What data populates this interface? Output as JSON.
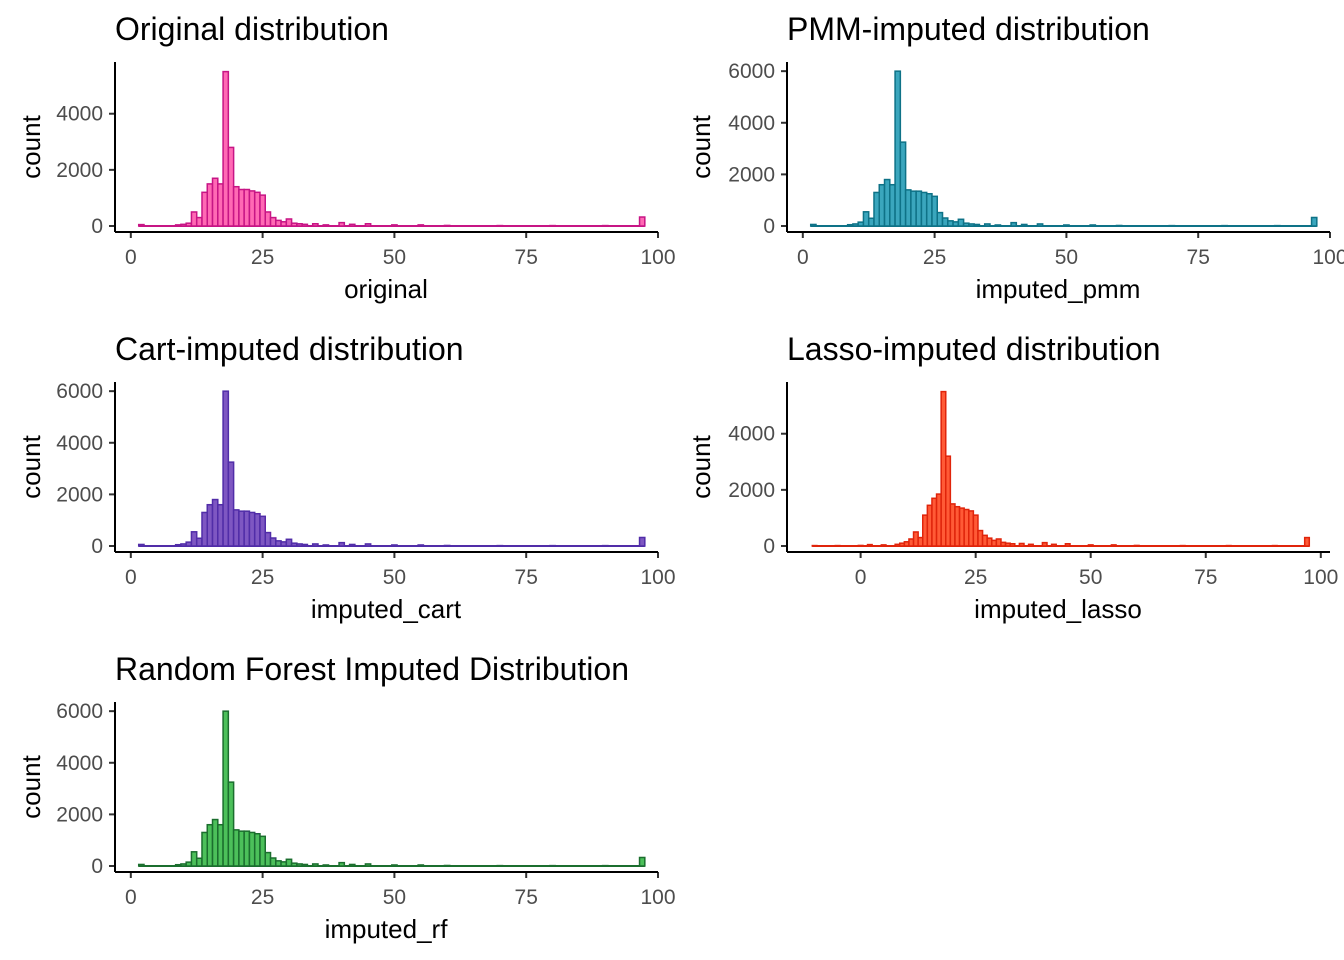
{
  "colors": {
    "original": {
      "fill": "#ff69b4",
      "stroke": "#c71585"
    },
    "pmm": {
      "fill": "#3aa6bd",
      "stroke": "#0e7287"
    },
    "cart": {
      "fill": "#7e57c2",
      "stroke": "#512da8"
    },
    "lasso": {
      "fill": "#ff5a36",
      "stroke": "#e0240b"
    },
    "rf": {
      "fill": "#4cc05a",
      "stroke": "#1b6e2e"
    }
  },
  "chart_data": [
    {
      "type": "bar",
      "id": "original",
      "title": "Original distribution",
      "xlabel": "original",
      "ylabel": "count",
      "xlim": [
        -3,
        100
      ],
      "ylim": [
        0,
        5700
      ],
      "xticks": [
        0,
        25,
        50,
        75,
        100
      ],
      "yticks": [
        0,
        2000,
        4000
      ],
      "grid": false,
      "bins": [
        {
          "x": 2,
          "count": 50
        },
        {
          "x": 9,
          "count": 40
        },
        {
          "x": 10,
          "count": 60
        },
        {
          "x": 11,
          "count": 100
        },
        {
          "x": 12,
          "count": 500
        },
        {
          "x": 13,
          "count": 300
        },
        {
          "x": 14,
          "count": 1200
        },
        {
          "x": 15,
          "count": 1500
        },
        {
          "x": 16,
          "count": 1700
        },
        {
          "x": 17,
          "count": 1500
        },
        {
          "x": 18,
          "count": 5500
        },
        {
          "x": 19,
          "count": 2800
        },
        {
          "x": 20,
          "count": 1400
        },
        {
          "x": 21,
          "count": 1300
        },
        {
          "x": 22,
          "count": 1300
        },
        {
          "x": 23,
          "count": 1250
        },
        {
          "x": 24,
          "count": 1200
        },
        {
          "x": 25,
          "count": 1100
        },
        {
          "x": 26,
          "count": 500
        },
        {
          "x": 27,
          "count": 300
        },
        {
          "x": 28,
          "count": 200
        },
        {
          "x": 29,
          "count": 150
        },
        {
          "x": 30,
          "count": 250
        },
        {
          "x": 31,
          "count": 100
        },
        {
          "x": 32,
          "count": 80
        },
        {
          "x": 33,
          "count": 60
        },
        {
          "x": 35,
          "count": 80
        },
        {
          "x": 37,
          "count": 40
        },
        {
          "x": 40,
          "count": 120
        },
        {
          "x": 42,
          "count": 60
        },
        {
          "x": 45,
          "count": 80
        },
        {
          "x": 50,
          "count": 40
        },
        {
          "x": 55,
          "count": 40
        },
        {
          "x": 60,
          "count": 20
        },
        {
          "x": 70,
          "count": 15
        },
        {
          "x": 80,
          "count": 15
        },
        {
          "x": 90,
          "count": 15
        },
        {
          "x": 97,
          "count": 320
        }
      ]
    },
    {
      "type": "bar",
      "id": "pmm",
      "title": "PMM-imputed distribution",
      "xlabel": "imputed_pmm",
      "ylabel": "count",
      "xlim": [
        -3,
        100
      ],
      "ylim": [
        0,
        6200
      ],
      "xticks": [
        0,
        25,
        50,
        75,
        100
      ],
      "yticks": [
        0,
        2000,
        4000,
        6000
      ],
      "grid": false,
      "bins": [
        {
          "x": 2,
          "count": 60
        },
        {
          "x": 9,
          "count": 50
        },
        {
          "x": 10,
          "count": 80
        },
        {
          "x": 11,
          "count": 150
        },
        {
          "x": 12,
          "count": 550
        },
        {
          "x": 13,
          "count": 300
        },
        {
          "x": 14,
          "count": 1300
        },
        {
          "x": 15,
          "count": 1600
        },
        {
          "x": 16,
          "count": 1800
        },
        {
          "x": 17,
          "count": 1600
        },
        {
          "x": 18,
          "count": 6000
        },
        {
          "x": 19,
          "count": 3250
        },
        {
          "x": 20,
          "count": 1400
        },
        {
          "x": 21,
          "count": 1350
        },
        {
          "x": 22,
          "count": 1350
        },
        {
          "x": 23,
          "count": 1300
        },
        {
          "x": 24,
          "count": 1250
        },
        {
          "x": 25,
          "count": 1150
        },
        {
          "x": 26,
          "count": 520
        },
        {
          "x": 27,
          "count": 310
        },
        {
          "x": 28,
          "count": 200
        },
        {
          "x": 29,
          "count": 160
        },
        {
          "x": 30,
          "count": 260
        },
        {
          "x": 31,
          "count": 110
        },
        {
          "x": 32,
          "count": 80
        },
        {
          "x": 33,
          "count": 60
        },
        {
          "x": 35,
          "count": 80
        },
        {
          "x": 37,
          "count": 40
        },
        {
          "x": 40,
          "count": 130
        },
        {
          "x": 42,
          "count": 60
        },
        {
          "x": 45,
          "count": 80
        },
        {
          "x": 50,
          "count": 40
        },
        {
          "x": 55,
          "count": 40
        },
        {
          "x": 60,
          "count": 20
        },
        {
          "x": 70,
          "count": 15
        },
        {
          "x": 80,
          "count": 15
        },
        {
          "x": 90,
          "count": 15
        },
        {
          "x": 97,
          "count": 330
        }
      ]
    },
    {
      "type": "bar",
      "id": "cart",
      "title": "Cart-imputed distribution",
      "xlabel": "imputed_cart",
      "ylabel": "count",
      "xlim": [
        -3,
        100
      ],
      "ylim": [
        0,
        6200
      ],
      "xticks": [
        0,
        25,
        50,
        75,
        100
      ],
      "yticks": [
        0,
        2000,
        4000,
        6000
      ],
      "grid": false,
      "bins": [
        {
          "x": 2,
          "count": 60
        },
        {
          "x": 9,
          "count": 50
        },
        {
          "x": 10,
          "count": 80
        },
        {
          "x": 11,
          "count": 150
        },
        {
          "x": 12,
          "count": 550
        },
        {
          "x": 13,
          "count": 300
        },
        {
          "x": 14,
          "count": 1300
        },
        {
          "x": 15,
          "count": 1600
        },
        {
          "x": 16,
          "count": 1800
        },
        {
          "x": 17,
          "count": 1600
        },
        {
          "x": 18,
          "count": 6000
        },
        {
          "x": 19,
          "count": 3250
        },
        {
          "x": 20,
          "count": 1400
        },
        {
          "x": 21,
          "count": 1350
        },
        {
          "x": 22,
          "count": 1350
        },
        {
          "x": 23,
          "count": 1300
        },
        {
          "x": 24,
          "count": 1250
        },
        {
          "x": 25,
          "count": 1150
        },
        {
          "x": 26,
          "count": 520
        },
        {
          "x": 27,
          "count": 310
        },
        {
          "x": 28,
          "count": 200
        },
        {
          "x": 29,
          "count": 160
        },
        {
          "x": 30,
          "count": 260
        },
        {
          "x": 31,
          "count": 110
        },
        {
          "x": 32,
          "count": 80
        },
        {
          "x": 33,
          "count": 60
        },
        {
          "x": 35,
          "count": 80
        },
        {
          "x": 37,
          "count": 40
        },
        {
          "x": 40,
          "count": 130
        },
        {
          "x": 42,
          "count": 60
        },
        {
          "x": 45,
          "count": 80
        },
        {
          "x": 50,
          "count": 40
        },
        {
          "x": 55,
          "count": 40
        },
        {
          "x": 60,
          "count": 20
        },
        {
          "x": 70,
          "count": 15
        },
        {
          "x": 80,
          "count": 15
        },
        {
          "x": 90,
          "count": 15
        },
        {
          "x": 97,
          "count": 330
        }
      ]
    },
    {
      "type": "bar",
      "id": "lasso",
      "title": "Lasso-imputed distribution",
      "xlabel": "imputed_lasso",
      "ylabel": "count",
      "xlim": [
        -16,
        102
      ],
      "ylim": [
        0,
        5700
      ],
      "xticks": [
        0,
        25,
        50,
        75,
        100
      ],
      "yticks": [
        0,
        2000,
        4000
      ],
      "grid": false,
      "bins": [
        {
          "x": -10,
          "count": 15
        },
        {
          "x": -5,
          "count": 15
        },
        {
          "x": 0,
          "count": 20
        },
        {
          "x": 2,
          "count": 50
        },
        {
          "x": 5,
          "count": 40
        },
        {
          "x": 8,
          "count": 60
        },
        {
          "x": 9,
          "count": 100
        },
        {
          "x": 10,
          "count": 150
        },
        {
          "x": 11,
          "count": 250
        },
        {
          "x": 12,
          "count": 500
        },
        {
          "x": 13,
          "count": 300
        },
        {
          "x": 14,
          "count": 1100
        },
        {
          "x": 15,
          "count": 1450
        },
        {
          "x": 16,
          "count": 1700
        },
        {
          "x": 17,
          "count": 1850
        },
        {
          "x": 18,
          "count": 5500
        },
        {
          "x": 19,
          "count": 3200
        },
        {
          "x": 20,
          "count": 1500
        },
        {
          "x": 21,
          "count": 1400
        },
        {
          "x": 22,
          "count": 1350
        },
        {
          "x": 23,
          "count": 1300
        },
        {
          "x": 24,
          "count": 1250
        },
        {
          "x": 25,
          "count": 1100
        },
        {
          "x": 26,
          "count": 550
        },
        {
          "x": 27,
          "count": 380
        },
        {
          "x": 28,
          "count": 280
        },
        {
          "x": 29,
          "count": 200
        },
        {
          "x": 30,
          "count": 250
        },
        {
          "x": 31,
          "count": 130
        },
        {
          "x": 32,
          "count": 100
        },
        {
          "x": 33,
          "count": 80
        },
        {
          "x": 35,
          "count": 90
        },
        {
          "x": 37,
          "count": 60
        },
        {
          "x": 40,
          "count": 120
        },
        {
          "x": 42,
          "count": 60
        },
        {
          "x": 45,
          "count": 80
        },
        {
          "x": 50,
          "count": 40
        },
        {
          "x": 55,
          "count": 40
        },
        {
          "x": 60,
          "count": 20
        },
        {
          "x": 70,
          "count": 15
        },
        {
          "x": 80,
          "count": 15
        },
        {
          "x": 90,
          "count": 15
        },
        {
          "x": 97,
          "count": 300
        }
      ]
    },
    {
      "type": "bar",
      "id": "rf",
      "title": "Random Forest Imputed Distribution",
      "xlabel": "imputed_rf",
      "ylabel": "count",
      "xlim": [
        -3,
        100
      ],
      "ylim": [
        0,
        6200
      ],
      "xticks": [
        0,
        25,
        50,
        75,
        100
      ],
      "yticks": [
        0,
        2000,
        4000,
        6000
      ],
      "grid": false,
      "bins": [
        {
          "x": 2,
          "count": 60
        },
        {
          "x": 9,
          "count": 50
        },
        {
          "x": 10,
          "count": 80
        },
        {
          "x": 11,
          "count": 150
        },
        {
          "x": 12,
          "count": 550
        },
        {
          "x": 13,
          "count": 300
        },
        {
          "x": 14,
          "count": 1300
        },
        {
          "x": 15,
          "count": 1600
        },
        {
          "x": 16,
          "count": 1800
        },
        {
          "x": 17,
          "count": 1600
        },
        {
          "x": 18,
          "count": 6000
        },
        {
          "x": 19,
          "count": 3250
        },
        {
          "x": 20,
          "count": 1400
        },
        {
          "x": 21,
          "count": 1350
        },
        {
          "x": 22,
          "count": 1350
        },
        {
          "x": 23,
          "count": 1300
        },
        {
          "x": 24,
          "count": 1250
        },
        {
          "x": 25,
          "count": 1150
        },
        {
          "x": 26,
          "count": 520
        },
        {
          "x": 27,
          "count": 310
        },
        {
          "x": 28,
          "count": 200
        },
        {
          "x": 29,
          "count": 160
        },
        {
          "x": 30,
          "count": 260
        },
        {
          "x": 31,
          "count": 110
        },
        {
          "x": 32,
          "count": 80
        },
        {
          "x": 33,
          "count": 60
        },
        {
          "x": 35,
          "count": 80
        },
        {
          "x": 37,
          "count": 40
        },
        {
          "x": 40,
          "count": 130
        },
        {
          "x": 42,
          "count": 60
        },
        {
          "x": 45,
          "count": 80
        },
        {
          "x": 50,
          "count": 40
        },
        {
          "x": 55,
          "count": 40
        },
        {
          "x": 60,
          "count": 20
        },
        {
          "x": 70,
          "count": 15
        },
        {
          "x": 80,
          "count": 15
        },
        {
          "x": 90,
          "count": 15
        },
        {
          "x": 97,
          "count": 330
        }
      ]
    }
  ]
}
